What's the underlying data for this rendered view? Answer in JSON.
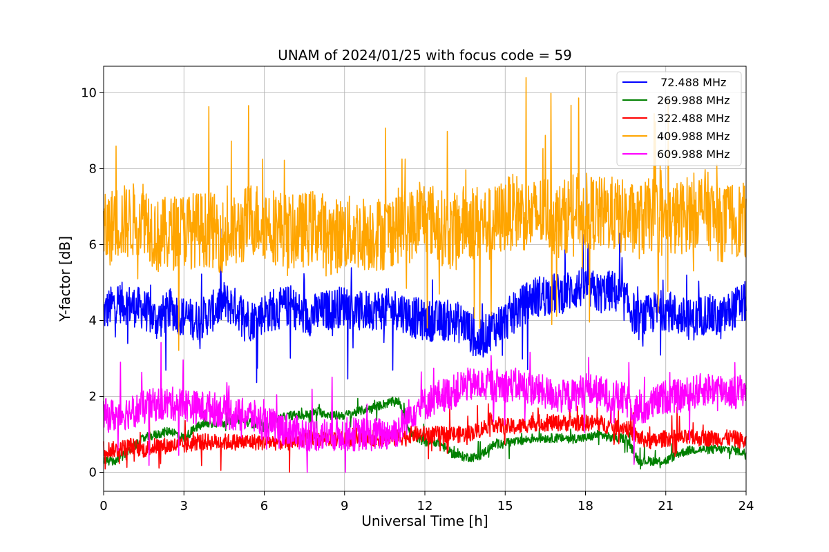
{
  "chart_data": {
    "type": "line",
    "title": "UNAM of 2024/01/25 with focus code = 59",
    "xlabel": "Universal Time [h]",
    "ylabel": "Y-factor [dB]",
    "xlim": [
      0,
      24
    ],
    "ylim": [
      -0.5,
      10.7
    ],
    "xticks": [
      0,
      3,
      6,
      9,
      12,
      15,
      18,
      21,
      24
    ],
    "xtick_labels": [
      "0",
      "3",
      "6",
      "9",
      "12",
      "15",
      "18",
      "21",
      "24"
    ],
    "yticks": [
      0,
      2,
      4,
      6,
      8,
      10
    ],
    "ytick_labels": [
      "0",
      "2",
      "4",
      "6",
      "8",
      "10"
    ],
    "grid": true,
    "legend_position": "top-right",
    "x": [
      0,
      0.5,
      1,
      1.5,
      2,
      2.5,
      3,
      3.5,
      4,
      4.5,
      5,
      5.5,
      6,
      6.5,
      7,
      7.5,
      8,
      8.5,
      9,
      9.5,
      10,
      10.5,
      11,
      11.5,
      12,
      12.5,
      13,
      13.5,
      14,
      14.5,
      15,
      15.5,
      16,
      16.5,
      17,
      17.5,
      18,
      18.5,
      19,
      19.5,
      20,
      20.5,
      21,
      21.5,
      22,
      22.5,
      23,
      23.5,
      24
    ],
    "series": [
      {
        "name": " 72.488 MHz",
        "color": "#0000ff",
        "values": [
          4.2,
          4.5,
          4.4,
          4.3,
          4.0,
          4.3,
          4.1,
          4.0,
          4.2,
          4.5,
          4.3,
          4.0,
          4.2,
          4.3,
          4.4,
          4.1,
          4.2,
          4.3,
          4.4,
          4.2,
          4.3,
          4.3,
          4.3,
          4.1,
          4.0,
          4.0,
          4.0,
          3.9,
          3.4,
          3.8,
          4.0,
          4.3,
          4.6,
          4.7,
          4.7,
          4.8,
          4.9,
          4.7,
          4.8,
          4.5,
          4.0,
          4.2,
          4.3,
          4.1,
          4.0,
          4.2,
          4.0,
          4.3,
          4.5
        ],
        "spread": 0.55
      },
      {
        "name": "269.988 MHz",
        "color": "#008000",
        "values": [
          0.3,
          0.3,
          0.6,
          0.9,
          1.0,
          1.1,
          0.9,
          1.2,
          1.3,
          1.3,
          1.4,
          1.3,
          1.2,
          1.4,
          1.5,
          1.5,
          1.6,
          1.5,
          1.5,
          1.6,
          1.7,
          1.8,
          1.9,
          1.0,
          0.8,
          0.8,
          0.5,
          0.4,
          0.4,
          0.7,
          0.8,
          0.8,
          0.9,
          0.9,
          0.9,
          0.9,
          0.9,
          1.0,
          0.9,
          0.9,
          0.3,
          0.3,
          0.3,
          0.5,
          0.6,
          0.6,
          0.6,
          0.6,
          0.5
        ],
        "spread": 0.12
      },
      {
        "name": "322.488 MHz",
        "color": "#ff0000",
        "values": [
          0.6,
          0.6,
          0.7,
          0.6,
          0.7,
          0.7,
          0.7,
          0.8,
          0.8,
          0.8,
          0.8,
          0.8,
          0.8,
          0.8,
          0.8,
          0.9,
          0.9,
          0.9,
          0.9,
          0.9,
          0.9,
          0.9,
          0.9,
          1.0,
          1.0,
          1.0,
          1.0,
          1.0,
          1.1,
          1.3,
          1.2,
          1.2,
          1.3,
          1.3,
          1.3,
          1.3,
          1.3,
          1.3,
          1.2,
          1.2,
          0.9,
          0.8,
          0.9,
          0.9,
          0.9,
          0.9,
          0.9,
          0.9,
          0.8
        ],
        "spread": 0.22
      },
      {
        "name": "409.988 MHz",
        "color": "#ffa500",
        "values": [
          6.3,
          6.6,
          6.6,
          6.8,
          6.2,
          6.3,
          6.4,
          6.4,
          6.4,
          6.2,
          6.3,
          6.7,
          6.6,
          6.5,
          6.3,
          6.4,
          6.5,
          6.2,
          6.3,
          6.3,
          6.3,
          6.3,
          6.5,
          6.5,
          6.8,
          6.5,
          6.3,
          6.6,
          6.6,
          6.5,
          6.8,
          6.9,
          6.7,
          6.9,
          6.6,
          6.9,
          6.9,
          6.8,
          6.8,
          6.7,
          6.6,
          6.8,
          6.6,
          6.7,
          6.9,
          7.0,
          6.5,
          6.7,
          6.6
        ],
        "spread": 1.0
      },
      {
        "name": "609.988 MHz",
        "color": "#ff00ff",
        "values": [
          1.5,
          1.5,
          1.6,
          1.7,
          1.8,
          1.8,
          1.8,
          1.7,
          1.7,
          1.6,
          1.5,
          1.5,
          1.3,
          1.2,
          1.1,
          1.0,
          1.0,
          1.0,
          1.0,
          1.0,
          1.0,
          1.0,
          1.1,
          1.6,
          1.8,
          2.0,
          2.1,
          2.3,
          2.3,
          2.3,
          2.3,
          2.3,
          2.2,
          2.1,
          2.0,
          2.0,
          2.2,
          2.1,
          2.0,
          1.9,
          1.6,
          1.8,
          2.0,
          2.0,
          2.1,
          2.2,
          2.2,
          2.1,
          2.2
        ],
        "spread": 0.45
      }
    ]
  }
}
